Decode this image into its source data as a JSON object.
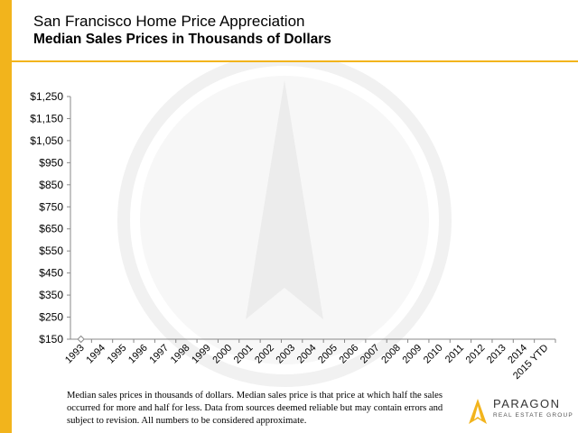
{
  "header": {
    "title": "San Francisco Home Price Appreciation",
    "subtitle": "Median Sales Prices in Thousands of Dollars"
  },
  "footnote": "Median sales prices in thousands of dollars. Median sales price is that price at which half the sales occurred for more and half for less. Data from sources deemed reliable but may contain errors and subject to revision. All numbers to be considered approximate.",
  "logo": {
    "name": "PARAGON",
    "tagline": "REAL ESTATE GROUP"
  },
  "colors": {
    "accent": "#f2b41c",
    "series": "#8a8a8a"
  },
  "chart_data": {
    "type": "line",
    "title": "San Francisco Home Price Appreciation",
    "subtitle": "Median Sales Prices in Thousands of Dollars",
    "categories": [
      "1993",
      "1994",
      "1995",
      "1996",
      "1997",
      "1998",
      "1999",
      "2000",
      "2001",
      "2002",
      "2003",
      "2004",
      "2005",
      "2006",
      "2007",
      "2008",
      "2009",
      "2010",
      "2011",
      "2012",
      "2013",
      "2014",
      "2015 YTD"
    ],
    "series": [
      {
        "values": [
          150,
          null,
          null,
          null,
          null,
          null,
          null,
          null,
          null,
          null,
          null,
          null,
          null,
          null,
          null,
          null,
          null,
          null,
          null,
          null,
          null,
          null,
          null
        ]
      }
    ],
    "yticks": [
      "$1,250",
      "$1,150",
      "$1,050",
      "$950",
      "$850",
      "$750",
      "$650",
      "$550",
      "$450",
      "$350",
      "$250",
      "$150"
    ],
    "ylim": [
      150,
      1250
    ],
    "grid": false,
    "legend": "none"
  }
}
